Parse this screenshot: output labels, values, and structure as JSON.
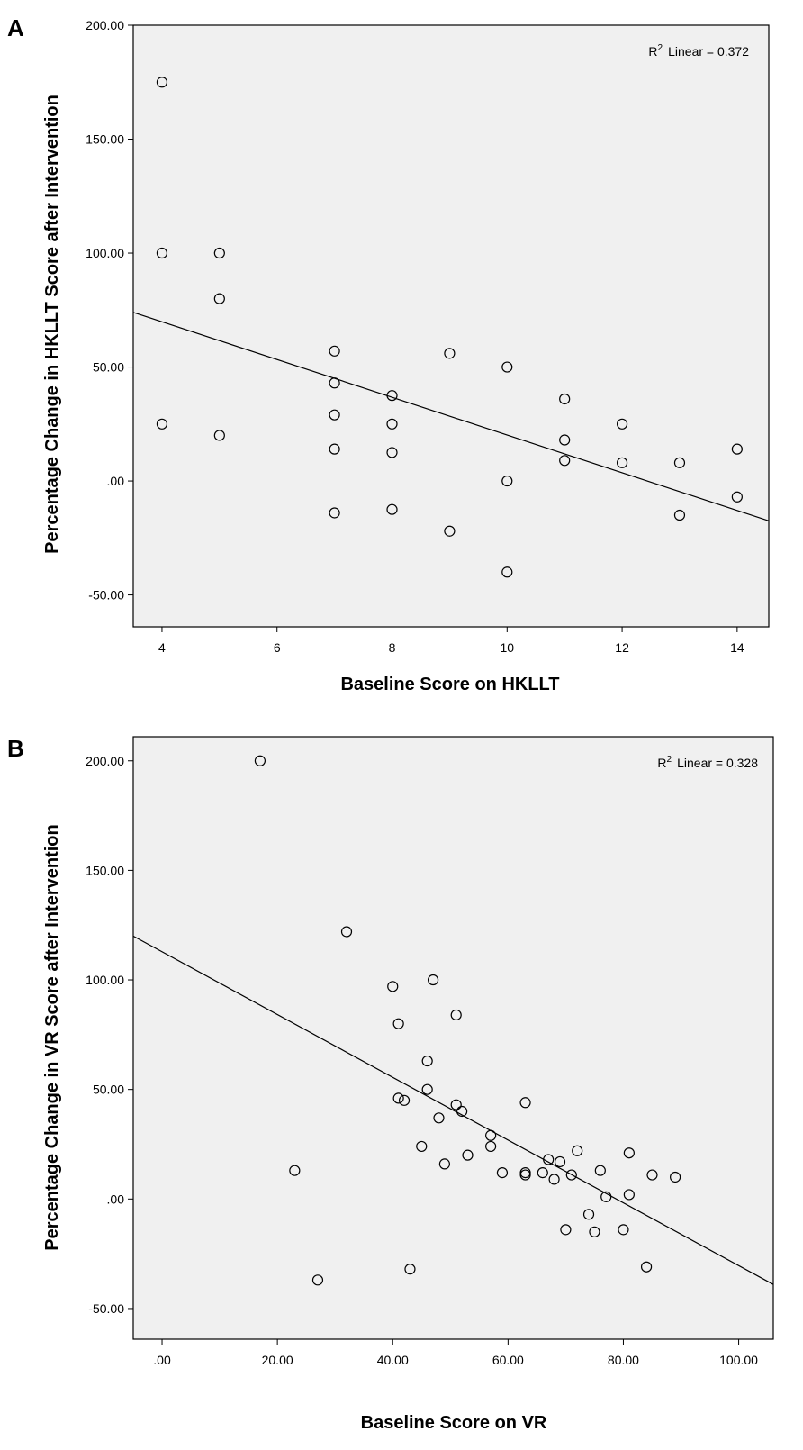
{
  "colors": {
    "plot_bg": "#f0f0f0",
    "frame": "#000000",
    "marker": "#000000",
    "page_bg": "#ffffff"
  },
  "chart_data": [
    {
      "panel": "A",
      "type": "scatter",
      "xlabel": "Baseline Score on HKLLT",
      "ylabel": "Percentage Change in HKLLT Score after Intervention",
      "xlim": [
        3.5,
        14.55
      ],
      "ylim": [
        -64,
        200
      ],
      "x_ticks": [
        4,
        6,
        8,
        10,
        12,
        14
      ],
      "x_tick_labels": [
        "4",
        "6",
        "8",
        "10",
        "12",
        "14"
      ],
      "y_ticks": [
        200,
        150,
        100,
        50,
        0,
        -50
      ],
      "y_tick_labels": [
        "200.00",
        "150.00",
        "100.00",
        "50.00",
        ".00",
        "-50.00"
      ],
      "r2_text": "Linear = 0.372",
      "r2_prefix": "R",
      "r2_sup": "2",
      "fit_line": {
        "x": [
          3.5,
          14.55
        ],
        "y": [
          74,
          -17.5
        ]
      },
      "points": [
        {
          "x": 4,
          "y": 175
        },
        {
          "x": 4,
          "y": 100
        },
        {
          "x": 4,
          "y": 25
        },
        {
          "x": 5,
          "y": 100
        },
        {
          "x": 5,
          "y": 80
        },
        {
          "x": 5,
          "y": 20
        },
        {
          "x": 7,
          "y": 57
        },
        {
          "x": 7,
          "y": 43
        },
        {
          "x": 7,
          "y": 29
        },
        {
          "x": 7,
          "y": 14
        },
        {
          "x": 7,
          "y": -14
        },
        {
          "x": 8,
          "y": 37.5
        },
        {
          "x": 8,
          "y": 25
        },
        {
          "x": 8,
          "y": 12.5
        },
        {
          "x": 8,
          "y": -12.5
        },
        {
          "x": 9,
          "y": 56
        },
        {
          "x": 9,
          "y": -22
        },
        {
          "x": 10,
          "y": 50
        },
        {
          "x": 10,
          "y": 0
        },
        {
          "x": 10,
          "y": -40
        },
        {
          "x": 11,
          "y": 36
        },
        {
          "x": 11,
          "y": 18
        },
        {
          "x": 11,
          "y": 9
        },
        {
          "x": 12,
          "y": 25
        },
        {
          "x": 12,
          "y": 8
        },
        {
          "x": 13,
          "y": 8
        },
        {
          "x": 13,
          "y": -15
        },
        {
          "x": 14,
          "y": 14
        },
        {
          "x": 14,
          "y": -7
        }
      ]
    },
    {
      "panel": "B",
      "type": "scatter",
      "xlabel": "Baseline Score on VR",
      "ylabel": "Percentage Change in VR Score after Intervention",
      "xlim": [
        -5,
        106
      ],
      "ylim": [
        -64,
        211
      ],
      "x_ticks": [
        0,
        20,
        40,
        60,
        80,
        100
      ],
      "x_tick_labels": [
        ".00",
        "20.00",
        "40.00",
        "60.00",
        "80.00",
        "100.00"
      ],
      "y_ticks": [
        200,
        150,
        100,
        50,
        0,
        -50
      ],
      "y_tick_labels": [
        "200.00",
        "150.00",
        "100.00",
        "50.00",
        ".00",
        "-50.00"
      ],
      "r2_text": "Linear = 0.328",
      "r2_prefix": "R",
      "r2_sup": "2",
      "fit_line": {
        "x": [
          -5,
          106
        ],
        "y": [
          120,
          -39
        ]
      },
      "points": [
        {
          "x": 17,
          "y": 200
        },
        {
          "x": 23,
          "y": 13
        },
        {
          "x": 27,
          "y": -37
        },
        {
          "x": 32,
          "y": 122
        },
        {
          "x": 40,
          "y": 97
        },
        {
          "x": 41,
          "y": 80
        },
        {
          "x": 41,
          "y": 46
        },
        {
          "x": 42,
          "y": 45
        },
        {
          "x": 43,
          "y": -32
        },
        {
          "x": 45,
          "y": 24
        },
        {
          "x": 46,
          "y": 63
        },
        {
          "x": 46,
          "y": 50
        },
        {
          "x": 47,
          "y": 100
        },
        {
          "x": 48,
          "y": 37
        },
        {
          "x": 49,
          "y": 16
        },
        {
          "x": 51,
          "y": 84
        },
        {
          "x": 51,
          "y": 43
        },
        {
          "x": 52,
          "y": 40
        },
        {
          "x": 53,
          "y": 20
        },
        {
          "x": 57,
          "y": 29
        },
        {
          "x": 57,
          "y": 24
        },
        {
          "x": 59,
          "y": 12
        },
        {
          "x": 63,
          "y": 44
        },
        {
          "x": 63,
          "y": 12
        },
        {
          "x": 63,
          "y": 11
        },
        {
          "x": 66,
          "y": 12
        },
        {
          "x": 67,
          "y": 18
        },
        {
          "x": 68,
          "y": 9
        },
        {
          "x": 69,
          "y": 17
        },
        {
          "x": 70,
          "y": -14
        },
        {
          "x": 71,
          "y": 11
        },
        {
          "x": 72,
          "y": 22
        },
        {
          "x": 74,
          "y": -7
        },
        {
          "x": 75,
          "y": -15
        },
        {
          "x": 76,
          "y": 13
        },
        {
          "x": 77,
          "y": 1
        },
        {
          "x": 80,
          "y": -14
        },
        {
          "x": 81,
          "y": 21
        },
        {
          "x": 81,
          "y": 2
        },
        {
          "x": 84,
          "y": -31
        },
        {
          "x": 85,
          "y": 11
        },
        {
          "x": 89,
          "y": 10
        }
      ]
    }
  ]
}
